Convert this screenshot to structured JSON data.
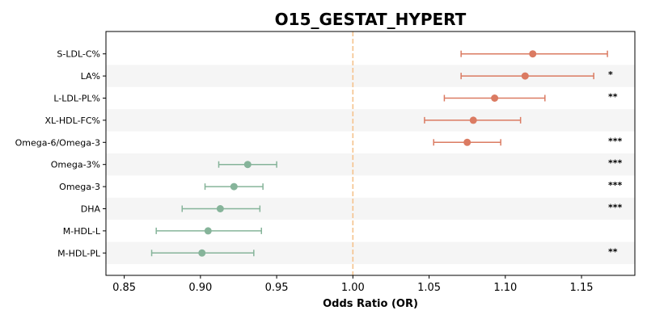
{
  "chart_data": {
    "type": "forest",
    "title": "O15_GESTAT_HYPERT",
    "xlabel": "Odds Ratio (OR)",
    "xlim": [
      0.838,
      1.185
    ],
    "xticks": [
      "0.85",
      "0.90",
      "0.95",
      "1.00",
      "1.05",
      "1.10",
      "1.15"
    ],
    "reference_line": 1.0,
    "reference_color": "#f5c28c",
    "band_color": "#f5f5f5",
    "colors": {
      "positive": "#db7b62",
      "negative": "#86b49a"
    },
    "rows": [
      {
        "label": "S-LDL-C%",
        "or": 1.118,
        "lo": 1.071,
        "hi": 1.167,
        "sig": ""
      },
      {
        "label": "LA%",
        "or": 1.113,
        "lo": 1.071,
        "hi": 1.158,
        "sig": "*"
      },
      {
        "label": "L-LDL-PL%",
        "or": 1.093,
        "lo": 1.06,
        "hi": 1.126,
        "sig": "**"
      },
      {
        "label": "XL-HDL-FC%",
        "or": 1.079,
        "lo": 1.047,
        "hi": 1.11,
        "sig": ""
      },
      {
        "label": "Omega-6/Omega-3",
        "or": 1.075,
        "lo": 1.053,
        "hi": 1.097,
        "sig": "***"
      },
      {
        "label": "Omega-3%",
        "or": 0.931,
        "lo": 0.912,
        "hi": 0.95,
        "sig": "***"
      },
      {
        "label": "Omega-3",
        "or": 0.922,
        "lo": 0.903,
        "hi": 0.941,
        "sig": "***"
      },
      {
        "label": "DHA",
        "or": 0.913,
        "lo": 0.888,
        "hi": 0.939,
        "sig": "***"
      },
      {
        "label": "M-HDL-L",
        "or": 0.905,
        "lo": 0.871,
        "hi": 0.94,
        "sig": ""
      },
      {
        "label": "M-HDL-PL",
        "or": 0.901,
        "lo": 0.868,
        "hi": 0.935,
        "sig": "**"
      }
    ]
  }
}
